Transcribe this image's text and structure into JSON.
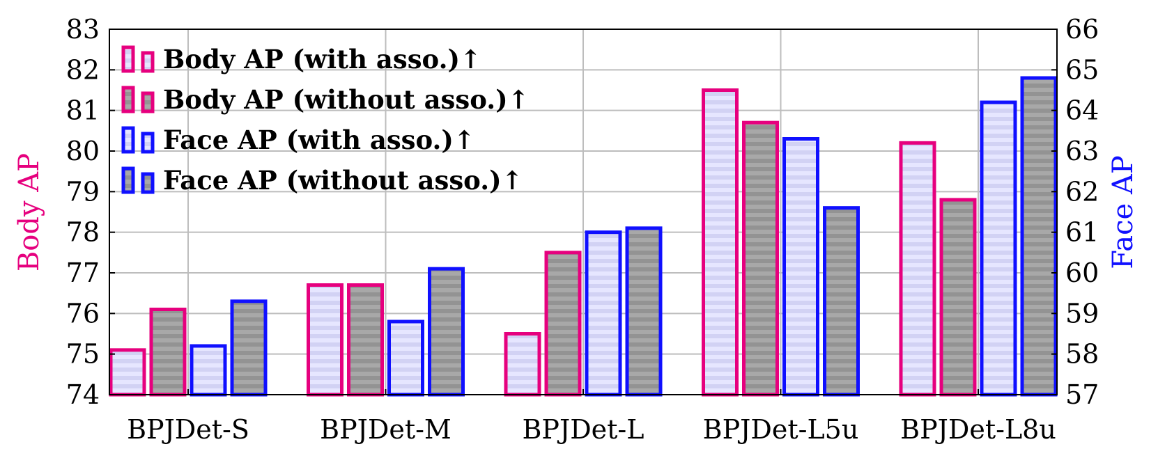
{
  "chart_data": {
    "type": "bar",
    "categories": [
      "BPJDet-S",
      "BPJDet-M",
      "BPJDet-L",
      "BPJDet-L5u",
      "BPJDet-L8u"
    ],
    "series": [
      {
        "name": "Body AP (with asso.)↑",
        "axis": "left",
        "color": "#e6007e",
        "fill": "light-stripes",
        "values": [
          75.1,
          76.7,
          75.5,
          81.5,
          80.2
        ]
      },
      {
        "name": "Body AP (without asso.)↑",
        "axis": "left",
        "color": "#e6007e",
        "fill": "gray-stripes",
        "values": [
          76.1,
          76.7,
          77.5,
          80.7,
          78.8
        ]
      },
      {
        "name": "Face AP (with asso.)↑",
        "axis": "right",
        "color": "#1010ff",
        "fill": "light-stripes",
        "values": [
          58.2,
          58.8,
          61.0,
          63.3,
          64.2
        ]
      },
      {
        "name": "Face AP (without asso.)↑",
        "axis": "right",
        "color": "#1010ff",
        "fill": "gray-stripes",
        "values": [
          59.3,
          60.1,
          61.1,
          61.6,
          64.8
        ]
      }
    ],
    "ylabel_left": "Body AP",
    "ylabel_right": "Face AP",
    "ylim_left": [
      74,
      83
    ],
    "ylim_right": [
      57,
      66
    ],
    "yticks_left": [
      74,
      75,
      76,
      77,
      78,
      79,
      80,
      81,
      82,
      83
    ],
    "yticks_right": [
      57,
      58,
      59,
      60,
      61,
      62,
      63,
      64,
      65,
      66
    ],
    "ylabel_left_color": "#e6007e",
    "ylabel_right_color": "#1010ff",
    "grid": true,
    "legend_position": "top-left"
  }
}
